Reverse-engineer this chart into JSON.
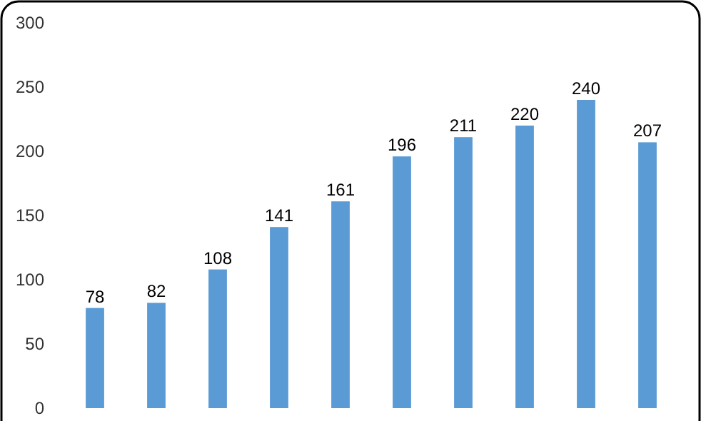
{
  "chart_data": {
    "type": "bar",
    "categories": [
      null,
      null,
      null,
      null,
      null,
      null,
      null,
      null,
      null,
      null
    ],
    "values": [
      78,
      82,
      108,
      141,
      161,
      196,
      211,
      220,
      240,
      207
    ],
    "color": "#5b9bd5",
    "ylim": [
      0,
      300
    ],
    "yticks": [
      0,
      50,
      100,
      150,
      200,
      250,
      300
    ],
    "data_labels": true,
    "grid": false
  }
}
